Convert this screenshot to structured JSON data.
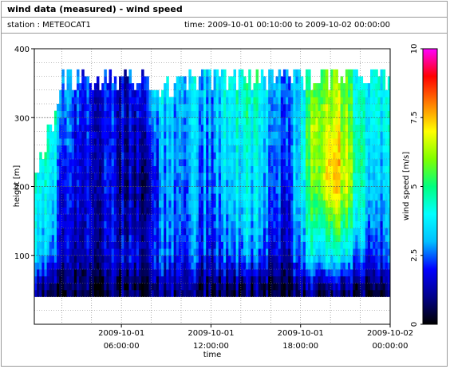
{
  "header": {
    "title": "wind data (measured) - wind speed",
    "station": "station : METEOCAT1",
    "time_range": "time: 2009-10-01 00:10:00 to 2009-10-02 00:00:00"
  },
  "chart_data": {
    "type": "heatmap",
    "title": "wind data (measured) - wind speed",
    "xlabel": "time",
    "ylabel": "height [m]",
    "colorbar_label": "wind speed [m/s]",
    "x_ticks": [
      {
        "line1": "2009-10-01",
        "line2": "06:00:00",
        "hours": 6
      },
      {
        "line1": "2009-10-01",
        "line2": "12:00:00",
        "hours": 12
      },
      {
        "line1": "2009-10-01",
        "line2": "18:00:00",
        "hours": 18
      },
      {
        "line1": "2009-10-02",
        "line2": "00:00:00",
        "hours": 24
      }
    ],
    "x_range_hours": [
      0.1667,
      24
    ],
    "y_ticks": [
      100,
      200,
      300,
      400
    ],
    "ylim": [
      0,
      400
    ],
    "colorbar_ticks": [
      "0",
      "2.5",
      "5",
      "7.5",
      "10"
    ],
    "colorbar_range": [
      0,
      10
    ],
    "height_range": [
      40,
      365
    ],
    "grid": true,
    "colorscale": [
      "#000000",
      "#00008b",
      "#0000ff",
      "#00bfff",
      "#00ffff",
      "#00ff80",
      "#80ff00",
      "#ffff00",
      "#ff8000",
      "#ff0000",
      "#ff00ff"
    ],
    "profiles": [
      {
        "hours": 0.5,
        "top": 230,
        "speeds": {
          "50": 1.2,
          "100": 3.5,
          "150": 4.0,
          "200": 4.2,
          "250": 4.6
        }
      },
      {
        "hours": 1.0,
        "top": 280,
        "speeds": {
          "50": 1.0,
          "100": 3.2,
          "150": 3.8,
          "200": 4.2,
          "250": 4.8,
          "280": 5.0
        }
      },
      {
        "hours": 1.5,
        "top": 300,
        "speeds": {
          "50": 0.8,
          "100": 2.8,
          "150": 3.3,
          "200": 3.6,
          "250": 4.0,
          "300": 4.5
        }
      },
      {
        "hours": 2.0,
        "top": 365,
        "speeds": {
          "50": 0.6,
          "100": 1.8,
          "150": 2.0,
          "200": 2.2,
          "250": 2.6,
          "300": 3.0,
          "365": 3.4
        }
      },
      {
        "hours": 3.0,
        "top": 365,
        "speeds": {
          "50": 0.5,
          "100": 1.2,
          "150": 1.5,
          "200": 1.6,
          "250": 1.8,
          "300": 2.0,
          "365": 2.3
        }
      },
      {
        "hours": 4.0,
        "top": 365,
        "speeds": {
          "50": 0.6,
          "100": 1.6,
          "150": 1.8,
          "200": 1.9,
          "250": 2.0,
          "300": 2.1,
          "365": 2.2
        }
      },
      {
        "hours": 5.0,
        "top": 365,
        "speeds": {
          "50": 0.4,
          "100": 1.4,
          "150": 1.6,
          "200": 1.7,
          "250": 1.8,
          "300": 1.9,
          "365": 2.0
        }
      },
      {
        "hours": 6.0,
        "top": 365,
        "speeds": {
          "50": 0.8,
          "100": 1.8,
          "150": 1.5,
          "200": 1.4,
          "250": 1.5,
          "300": 1.6,
          "365": 1.8
        }
      },
      {
        "hours": 7.0,
        "top": 365,
        "speeds": {
          "50": 0.5,
          "100": 1.5,
          "150": 1.2,
          "200": 1.0,
          "250": 1.1,
          "300": 1.4,
          "365": 2.0
        }
      },
      {
        "hours": 8.0,
        "top": 350,
        "speeds": {
          "50": 0.5,
          "100": 1.6,
          "150": 1.4,
          "200": 1.2,
          "250": 1.6,
          "300": 2.4,
          "350": 3.0
        }
      },
      {
        "hours": 9.0,
        "top": 350,
        "speeds": {
          "50": 1.0,
          "100": 2.6,
          "150": 2.8,
          "200": 3.0,
          "250": 3.2,
          "300": 3.4,
          "350": 3.6
        }
      },
      {
        "hours": 10.0,
        "top": 365,
        "speeds": {
          "50": 1.2,
          "100": 2.2,
          "150": 2.5,
          "200": 2.6,
          "250": 2.8,
          "300": 3.0,
          "365": 3.3
        }
      },
      {
        "hours": 11.0,
        "top": 365,
        "speeds": {
          "50": 0.8,
          "100": 2.5,
          "150": 2.8,
          "200": 3.0,
          "250": 3.2,
          "300": 3.4,
          "365": 3.6
        }
      },
      {
        "hours": 12.0,
        "top": 365,
        "speeds": {
          "50": 0.5,
          "100": 1.8,
          "150": 2.2,
          "200": 2.4,
          "250": 2.6,
          "300": 2.8,
          "365": 3.0
        }
      },
      {
        "hours": 13.0,
        "top": 365,
        "speeds": {
          "50": 0.6,
          "100": 2.5,
          "150": 3.0,
          "200": 3.3,
          "250": 3.5,
          "300": 3.8,
          "365": 4.0
        }
      },
      {
        "hours": 14.0,
        "top": 365,
        "speeds": {
          "50": 0.7,
          "100": 2.8,
          "150": 3.5,
          "200": 3.8,
          "250": 4.0,
          "300": 4.3,
          "365": 4.6
        }
      },
      {
        "hours": 15.0,
        "top": 365,
        "speeds": {
          "50": 0.6,
          "100": 2.6,
          "150": 3.3,
          "200": 3.6,
          "250": 3.8,
          "300": 4.2,
          "365": 4.5
        }
      },
      {
        "hours": 16.0,
        "top": 365,
        "speeds": {
          "50": 0.7,
          "100": 2.0,
          "150": 2.6,
          "200": 2.8,
          "250": 3.0,
          "300": 3.2,
          "365": 3.4
        }
      },
      {
        "hours": 17.0,
        "top": 365,
        "speeds": {
          "50": 0.5,
          "100": 1.4,
          "150": 1.8,
          "200": 2.0,
          "250": 2.2,
          "300": 2.5,
          "365": 2.8
        }
      },
      {
        "hours": 18.0,
        "top": 365,
        "speeds": {
          "50": 0.8,
          "100": 2.8,
          "150": 3.2,
          "200": 3.6,
          "250": 3.8,
          "300": 3.6,
          "365": 3.4
        }
      },
      {
        "hours": 19.0,
        "top": 365,
        "speeds": {
          "50": 0.9,
          "100": 3.8,
          "150": 5.0,
          "200": 6.0,
          "250": 6.4,
          "300": 6.6,
          "365": 5.2
        }
      },
      {
        "hours": 20.0,
        "top": 365,
        "speeds": {
          "50": 1.0,
          "100": 4.0,
          "150": 5.6,
          "200": 7.6,
          "250": 7.2,
          "300": 6.8,
          "365": 6.0
        }
      },
      {
        "hours": 21.0,
        "top": 365,
        "speeds": {
          "50": 0.8,
          "100": 3.6,
          "150": 5.2,
          "200": 6.4,
          "250": 6.6,
          "300": 6.0,
          "365": 5.6
        }
      },
      {
        "hours": 22.0,
        "top": 365,
        "speeds": {
          "50": 0.6,
          "100": 2.6,
          "150": 3.8,
          "200": 4.4,
          "250": 4.6,
          "300": 4.2,
          "365": 3.8
        }
      },
      {
        "hours": 23.0,
        "top": 365,
        "speeds": {
          "50": 0.4,
          "100": 2.0,
          "150": 2.6,
          "200": 3.0,
          "250": 3.4,
          "300": 3.8,
          "365": 4.0
        }
      },
      {
        "hours": 23.8,
        "top": 365,
        "speeds": {
          "50": 0.5,
          "100": 2.4,
          "150": 2.8,
          "200": 3.2,
          "250": 3.6,
          "300": 3.8,
          "365": 4.0
        }
      }
    ]
  }
}
